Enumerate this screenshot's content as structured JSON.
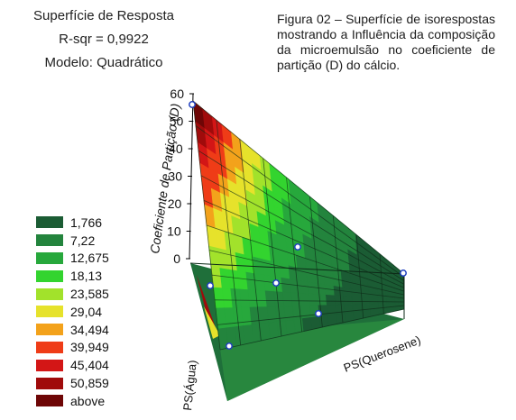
{
  "header": {
    "title": "Superfície de Resposta",
    "rsq": "R-sqr = 0,9922",
    "model": "Modelo: Quadrático"
  },
  "caption": "Figura 02 – Superfície de isorespostas mostrando a Influência da composição da microemulsão no coeficiente de partição (D) do cálcio.",
  "chart_data": {
    "type": "surface",
    "zlabel": "Coeficiente de Partição (D)",
    "xlabel": "PS(Querosene)",
    "ylabel": "PS(Água)",
    "z_ticks": [
      "60",
      "50",
      "40",
      "30",
      "20",
      "10",
      "0"
    ],
    "zlim": [
      0,
      60
    ],
    "legend": {
      "placement": "left",
      "items": [
        {
          "label": "1,766",
          "color": "#1b5c34"
        },
        {
          "label": "7,22",
          "color": "#23843d"
        },
        {
          "label": "12,675",
          "color": "#27a83c"
        },
        {
          "label": "18,13",
          "color": "#33d42f"
        },
        {
          "label": "23,585",
          "color": "#a2e22b"
        },
        {
          "label": "29,04",
          "color": "#e6e22b"
        },
        {
          "label": "34,494",
          "color": "#f3a21b"
        },
        {
          "label": "39,949",
          "color": "#ef3c17"
        },
        {
          "label": "45,404",
          "color": "#d31616"
        },
        {
          "label": "50,859",
          "color": "#a00b0b"
        },
        {
          "label": "above",
          "color": "#6e0606"
        }
      ]
    },
    "observed_points": [
      {
        "z": 57
      },
      {
        "z": 10
      },
      {
        "z": 0.5
      },
      {
        "z": 0
      }
    ]
  }
}
